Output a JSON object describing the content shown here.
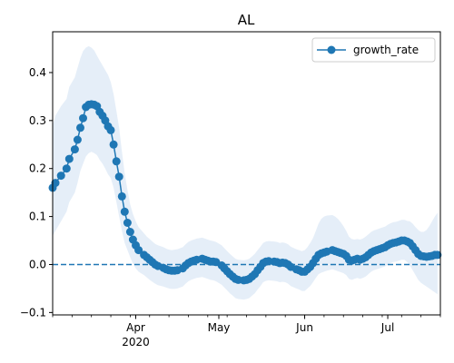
{
  "chart_data": {
    "type": "line",
    "title": "AL",
    "xlabel": "",
    "ylabel": "",
    "x_range": [
      "2020-03-02",
      "2020-07-20"
    ],
    "ylim": [
      -0.105,
      0.485
    ],
    "y_ticks": [
      -0.1,
      0.0,
      0.1,
      0.2,
      0.3,
      0.4
    ],
    "y_tick_labels": [
      "−0.1",
      "0.0",
      "0.1",
      "0.2",
      "0.3",
      "0.4"
    ],
    "x_ticks": [
      {
        "date": "2020-04-01",
        "label": "Apr",
        "sublabel": "2020"
      },
      {
        "date": "2020-05-01",
        "label": "May",
        "sublabel": ""
      },
      {
        "date": "2020-06-01",
        "label": "Jun",
        "sublabel": ""
      },
      {
        "date": "2020-07-01",
        "label": "Jul",
        "sublabel": ""
      }
    ],
    "reference_line": {
      "y": 0.0,
      "style": "dashed"
    },
    "legend": {
      "position": "top-right",
      "entries": [
        "growth_rate"
      ]
    },
    "series": [
      {
        "name": "growth_rate",
        "color": "#1f77b4",
        "band_color": "#dce8f5",
        "marker": "circle",
        "points": [
          {
            "date": "2020-03-02",
            "y": 0.16,
            "lo": 0.06,
            "hi": 0.29
          },
          {
            "date": "2020-03-03",
            "y": 0.17,
            "lo": 0.07,
            "hi": 0.31
          },
          {
            "date": "2020-03-05",
            "y": 0.185,
            "lo": 0.09,
            "hi": 0.33
          },
          {
            "date": "2020-03-07",
            "y": 0.2,
            "lo": 0.11,
            "hi": 0.345
          },
          {
            "date": "2020-03-08",
            "y": 0.22,
            "lo": 0.13,
            "hi": 0.37
          },
          {
            "date": "2020-03-10",
            "y": 0.24,
            "lo": 0.15,
            "hi": 0.39
          },
          {
            "date": "2020-03-11",
            "y": 0.26,
            "lo": 0.17,
            "hi": 0.41
          },
          {
            "date": "2020-03-12",
            "y": 0.285,
            "lo": 0.195,
            "hi": 0.43
          },
          {
            "date": "2020-03-13",
            "y": 0.305,
            "lo": 0.21,
            "hi": 0.445
          },
          {
            "date": "2020-03-14",
            "y": 0.328,
            "lo": 0.225,
            "hi": 0.452
          },
          {
            "date": "2020-03-15",
            "y": 0.333,
            "lo": 0.232,
            "hi": 0.455
          },
          {
            "date": "2020-03-16",
            "y": 0.334,
            "lo": 0.235,
            "hi": 0.452
          },
          {
            "date": "2020-03-17",
            "y": 0.333,
            "lo": 0.232,
            "hi": 0.446
          },
          {
            "date": "2020-03-18",
            "y": 0.33,
            "lo": 0.228,
            "hi": 0.435
          },
          {
            "date": "2020-03-19",
            "y": 0.318,
            "lo": 0.218,
            "hi": 0.425
          },
          {
            "date": "2020-03-20",
            "y": 0.31,
            "lo": 0.21,
            "hi": 0.415
          },
          {
            "date": "2020-03-21",
            "y": 0.3,
            "lo": 0.2,
            "hi": 0.405
          },
          {
            "date": "2020-03-22",
            "y": 0.288,
            "lo": 0.188,
            "hi": 0.395
          },
          {
            "date": "2020-03-23",
            "y": 0.28,
            "lo": 0.18,
            "hi": 0.38
          },
          {
            "date": "2020-03-24",
            "y": 0.25,
            "lo": 0.16,
            "hi": 0.355
          },
          {
            "date": "2020-03-25",
            "y": 0.215,
            "lo": 0.13,
            "hi": 0.32
          },
          {
            "date": "2020-03-26",
            "y": 0.183,
            "lo": 0.1,
            "hi": 0.285
          },
          {
            "date": "2020-03-27",
            "y": 0.142,
            "lo": 0.07,
            "hi": 0.235
          },
          {
            "date": "2020-03-28",
            "y": 0.11,
            "lo": 0.045,
            "hi": 0.19
          },
          {
            "date": "2020-03-29",
            "y": 0.087,
            "lo": 0.03,
            "hi": 0.155
          },
          {
            "date": "2020-03-30",
            "y": 0.068,
            "lo": 0.015,
            "hi": 0.125
          },
          {
            "date": "2020-03-31",
            "y": 0.052,
            "lo": 0.002,
            "hi": 0.105
          },
          {
            "date": "2020-04-01",
            "y": 0.04,
            "lo": -0.008,
            "hi": 0.09
          },
          {
            "date": "2020-04-02",
            "y": 0.03,
            "lo": -0.015,
            "hi": 0.078
          },
          {
            "date": "2020-04-04",
            "y": 0.02,
            "lo": -0.022,
            "hi": 0.065
          },
          {
            "date": "2020-04-05",
            "y": 0.015,
            "lo": -0.027,
            "hi": 0.058
          },
          {
            "date": "2020-04-06",
            "y": 0.01,
            "lo": -0.032,
            "hi": 0.053
          },
          {
            "date": "2020-04-07",
            "y": 0.005,
            "lo": -0.036,
            "hi": 0.048
          },
          {
            "date": "2020-04-08",
            "y": 0.0,
            "lo": -0.04,
            "hi": 0.043
          },
          {
            "date": "2020-04-09",
            "y": -0.003,
            "lo": -0.043,
            "hi": 0.04
          },
          {
            "date": "2020-04-11",
            "y": -0.007,
            "lo": -0.046,
            "hi": 0.036
          },
          {
            "date": "2020-04-12",
            "y": -0.01,
            "lo": -0.048,
            "hi": 0.033
          },
          {
            "date": "2020-04-13",
            "y": -0.012,
            "lo": -0.05,
            "hi": 0.031
          },
          {
            "date": "2020-04-14",
            "y": -0.013,
            "lo": -0.051,
            "hi": 0.03
          },
          {
            "date": "2020-04-15",
            "y": -0.013,
            "lo": -0.051,
            "hi": 0.031
          },
          {
            "date": "2020-04-16",
            "y": -0.012,
            "lo": -0.05,
            "hi": 0.032
          },
          {
            "date": "2020-04-18",
            "y": -0.008,
            "lo": -0.046,
            "hi": 0.036
          },
          {
            "date": "2020-04-19",
            "y": -0.002,
            "lo": -0.04,
            "hi": 0.042
          },
          {
            "date": "2020-04-20",
            "y": 0.003,
            "lo": -0.035,
            "hi": 0.047
          },
          {
            "date": "2020-04-21",
            "y": 0.006,
            "lo": -0.032,
            "hi": 0.05
          },
          {
            "date": "2020-04-22",
            "y": 0.008,
            "lo": -0.03,
            "hi": 0.052
          },
          {
            "date": "2020-04-23",
            "y": 0.01,
            "lo": -0.028,
            "hi": 0.054
          },
          {
            "date": "2020-04-25",
            "y": 0.012,
            "lo": -0.026,
            "hi": 0.056
          },
          {
            "date": "2020-04-26",
            "y": 0.01,
            "lo": -0.028,
            "hi": 0.054
          },
          {
            "date": "2020-04-27",
            "y": 0.008,
            "lo": -0.03,
            "hi": 0.052
          },
          {
            "date": "2020-04-28",
            "y": 0.006,
            "lo": -0.032,
            "hi": 0.05
          },
          {
            "date": "2020-04-29",
            "y": 0.006,
            "lo": -0.033,
            "hi": 0.049
          },
          {
            "date": "2020-04-30",
            "y": 0.005,
            "lo": -0.035,
            "hi": 0.047
          },
          {
            "date": "2020-05-02",
            "y": -0.002,
            "lo": -0.042,
            "hi": 0.04
          },
          {
            "date": "2020-05-03",
            "y": -0.008,
            "lo": -0.048,
            "hi": 0.034
          },
          {
            "date": "2020-05-04",
            "y": -0.014,
            "lo": -0.054,
            "hi": 0.028
          },
          {
            "date": "2020-05-05",
            "y": -0.02,
            "lo": -0.06,
            "hi": 0.022
          },
          {
            "date": "2020-05-06",
            "y": -0.025,
            "lo": -0.065,
            "hi": 0.017
          },
          {
            "date": "2020-05-07",
            "y": -0.03,
            "lo": -0.07,
            "hi": 0.012
          },
          {
            "date": "2020-05-08",
            "y": -0.032,
            "lo": -0.072,
            "hi": 0.01
          },
          {
            "date": "2020-05-10",
            "y": -0.033,
            "lo": -0.073,
            "hi": 0.009
          },
          {
            "date": "2020-05-11",
            "y": -0.032,
            "lo": -0.072,
            "hi": 0.01
          },
          {
            "date": "2020-05-12",
            "y": -0.03,
            "lo": -0.07,
            "hi": 0.012
          },
          {
            "date": "2020-05-13",
            "y": -0.025,
            "lo": -0.065,
            "hi": 0.017
          },
          {
            "date": "2020-05-14",
            "y": -0.02,
            "lo": -0.06,
            "hi": 0.022
          },
          {
            "date": "2020-05-15",
            "y": -0.012,
            "lo": -0.052,
            "hi": 0.03
          },
          {
            "date": "2020-05-16",
            "y": -0.005,
            "lo": -0.045,
            "hi": 0.037
          },
          {
            "date": "2020-05-17",
            "y": 0.003,
            "lo": -0.037,
            "hi": 0.045
          },
          {
            "date": "2020-05-18",
            "y": 0.006,
            "lo": -0.034,
            "hi": 0.048
          },
          {
            "date": "2020-05-19",
            "y": 0.007,
            "lo": -0.033,
            "hi": 0.049
          },
          {
            "date": "2020-05-21",
            "y": 0.006,
            "lo": -0.034,
            "hi": 0.048
          },
          {
            "date": "2020-05-22",
            "y": 0.005,
            "lo": -0.035,
            "hi": 0.047
          },
          {
            "date": "2020-05-23",
            "y": 0.003,
            "lo": -0.037,
            "hi": 0.045
          },
          {
            "date": "2020-05-24",
            "y": 0.004,
            "lo": -0.036,
            "hi": 0.046
          },
          {
            "date": "2020-05-25",
            "y": 0.003,
            "lo": -0.037,
            "hi": 0.045
          },
          {
            "date": "2020-05-26",
            "y": 0.0,
            "lo": -0.04,
            "hi": 0.042
          },
          {
            "date": "2020-05-27",
            "y": -0.005,
            "lo": -0.045,
            "hi": 0.037
          },
          {
            "date": "2020-05-29",
            "y": -0.01,
            "lo": -0.05,
            "hi": 0.032
          },
          {
            "date": "2020-05-30",
            "y": -0.012,
            "lo": -0.052,
            "hi": 0.03
          },
          {
            "date": "2020-05-31",
            "y": -0.015,
            "lo": -0.055,
            "hi": 0.028
          },
          {
            "date": "2020-06-01",
            "y": -0.015,
            "lo": -0.055,
            "hi": 0.03
          },
          {
            "date": "2020-06-02",
            "y": -0.01,
            "lo": -0.05,
            "hi": 0.036
          },
          {
            "date": "2020-06-03",
            "y": -0.005,
            "lo": -0.045,
            "hi": 0.045
          },
          {
            "date": "2020-06-04",
            "y": 0.003,
            "lo": -0.037,
            "hi": 0.055
          },
          {
            "date": "2020-06-05",
            "y": 0.012,
            "lo": -0.028,
            "hi": 0.07
          },
          {
            "date": "2020-06-06",
            "y": 0.02,
            "lo": -0.02,
            "hi": 0.085
          },
          {
            "date": "2020-06-07",
            "y": 0.023,
            "lo": -0.017,
            "hi": 0.095
          },
          {
            "date": "2020-06-08",
            "y": 0.025,
            "lo": -0.015,
            "hi": 0.1
          },
          {
            "date": "2020-06-09",
            "y": 0.027,
            "lo": -0.013,
            "hi": 0.102
          },
          {
            "date": "2020-06-11",
            "y": 0.03,
            "lo": -0.01,
            "hi": 0.103
          },
          {
            "date": "2020-06-12",
            "y": 0.028,
            "lo": -0.012,
            "hi": 0.1
          },
          {
            "date": "2020-06-13",
            "y": 0.026,
            "lo": -0.014,
            "hi": 0.095
          },
          {
            "date": "2020-06-14",
            "y": 0.024,
            "lo": -0.016,
            "hi": 0.088
          },
          {
            "date": "2020-06-15",
            "y": 0.022,
            "lo": -0.018,
            "hi": 0.08
          },
          {
            "date": "2020-06-16",
            "y": 0.018,
            "lo": -0.022,
            "hi": 0.07
          },
          {
            "date": "2020-06-17",
            "y": 0.01,
            "lo": -0.03,
            "hi": 0.058
          },
          {
            "date": "2020-06-18",
            "y": 0.008,
            "lo": -0.032,
            "hi": 0.053
          },
          {
            "date": "2020-06-19",
            "y": 0.01,
            "lo": -0.03,
            "hi": 0.052
          },
          {
            "date": "2020-06-20",
            "y": 0.012,
            "lo": -0.028,
            "hi": 0.053
          },
          {
            "date": "2020-06-21",
            "y": 0.01,
            "lo": -0.03,
            "hi": 0.052
          },
          {
            "date": "2020-06-22",
            "y": 0.012,
            "lo": -0.028,
            "hi": 0.054
          },
          {
            "date": "2020-06-23",
            "y": 0.015,
            "lo": -0.025,
            "hi": 0.058
          },
          {
            "date": "2020-06-24",
            "y": 0.02,
            "lo": -0.02,
            "hi": 0.063
          },
          {
            "date": "2020-06-25",
            "y": 0.025,
            "lo": -0.015,
            "hi": 0.068
          },
          {
            "date": "2020-06-26",
            "y": 0.028,
            "lo": -0.012,
            "hi": 0.071
          },
          {
            "date": "2020-06-27",
            "y": 0.03,
            "lo": -0.01,
            "hi": 0.073
          },
          {
            "date": "2020-06-28",
            "y": 0.032,
            "lo": -0.008,
            "hi": 0.075
          },
          {
            "date": "2020-06-29",
            "y": 0.034,
            "lo": -0.006,
            "hi": 0.077
          },
          {
            "date": "2020-06-30",
            "y": 0.036,
            "lo": -0.004,
            "hi": 0.079
          },
          {
            "date": "2020-07-01",
            "y": 0.04,
            "lo": 0.0,
            "hi": 0.083
          },
          {
            "date": "2020-07-02",
            "y": 0.043,
            "lo": 0.003,
            "hi": 0.086
          },
          {
            "date": "2020-07-03",
            "y": 0.045,
            "lo": 0.005,
            "hi": 0.088
          },
          {
            "date": "2020-07-04",
            "y": 0.046,
            "lo": 0.006,
            "hi": 0.089
          },
          {
            "date": "2020-07-05",
            "y": 0.048,
            "lo": 0.008,
            "hi": 0.091
          },
          {
            "date": "2020-07-06",
            "y": 0.05,
            "lo": 0.01,
            "hi": 0.093
          },
          {
            "date": "2020-07-07",
            "y": 0.05,
            "lo": 0.01,
            "hi": 0.093
          },
          {
            "date": "2020-07-08",
            "y": 0.048,
            "lo": 0.005,
            "hi": 0.091
          },
          {
            "date": "2020-07-09",
            "y": 0.045,
            "lo": -0.002,
            "hi": 0.09
          },
          {
            "date": "2020-07-10",
            "y": 0.038,
            "lo": -0.012,
            "hi": 0.085
          },
          {
            "date": "2020-07-11",
            "y": 0.03,
            "lo": -0.022,
            "hi": 0.078
          },
          {
            "date": "2020-07-12",
            "y": 0.022,
            "lo": -0.032,
            "hi": 0.072
          },
          {
            "date": "2020-07-13",
            "y": 0.018,
            "lo": -0.038,
            "hi": 0.068
          },
          {
            "date": "2020-07-14",
            "y": 0.017,
            "lo": -0.042,
            "hi": 0.068
          },
          {
            "date": "2020-07-15",
            "y": 0.016,
            "lo": -0.046,
            "hi": 0.072
          },
          {
            "date": "2020-07-16",
            "y": 0.017,
            "lo": -0.05,
            "hi": 0.08
          },
          {
            "date": "2020-07-17",
            "y": 0.018,
            "lo": -0.054,
            "hi": 0.09
          },
          {
            "date": "2020-07-18",
            "y": 0.02,
            "lo": -0.058,
            "hi": 0.1
          },
          {
            "date": "2020-07-19",
            "y": 0.02,
            "lo": -0.062,
            "hi": 0.108
          }
        ]
      }
    ]
  }
}
